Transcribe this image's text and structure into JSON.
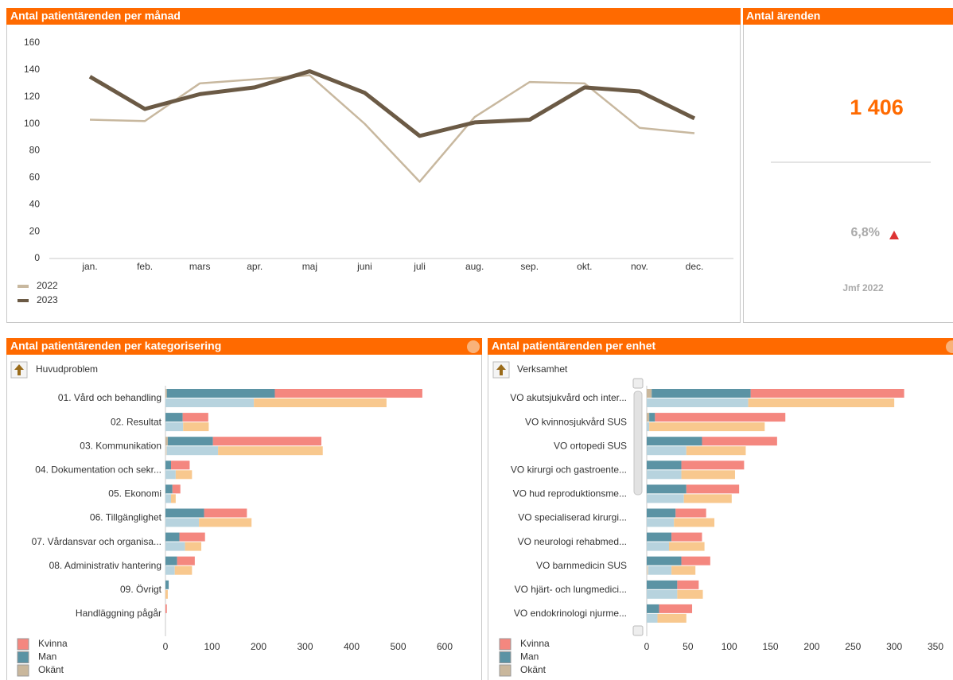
{
  "chart_data": [
    {
      "type": "line",
      "title": "Antal patientärenden per månad",
      "categories": [
        "jan.",
        "feb.",
        "mars",
        "apr.",
        "maj",
        "juni",
        "juli",
        "aug.",
        "sep.",
        "okt.",
        "nov.",
        "dec."
      ],
      "series": [
        {
          "name": "2022",
          "color": "#c8b89f",
          "values": [
            103,
            102,
            130,
            133,
            136,
            100,
            57,
            105,
            131,
            130,
            97,
            93
          ]
        },
        {
          "name": "2023",
          "color": "#6b5a45",
          "values": [
            135,
            111,
            122,
            127,
            139,
            123,
            91,
            101,
            103,
            127,
            124,
            104
          ]
        }
      ],
      "ylim": [
        0,
        160
      ],
      "yticks": [
        0,
        20,
        40,
        60,
        80,
        100,
        120,
        140,
        160
      ],
      "grid": false,
      "legend": "bottom-left"
    },
    {
      "type": "bar",
      "orientation": "horizontal",
      "stacked": true,
      "title": "Antal patientärenden per kategorisering",
      "subtitle": "Huvudproblem",
      "categories": [
        "01. Vård och behandling",
        "02. Resultat",
        "03. Kommunikation",
        "04. Dokumentation och sekr...",
        "05. Ekonomi",
        "06. Tillgänglighet",
        "07. Vårdansvar och organisa...",
        "08. Administrativ hantering",
        "09. Övrigt",
        "Handläggning pågår"
      ],
      "series": [
        {
          "name": "Kvinna",
          "color": "#f4877f",
          "compare_color": "#f8c88e",
          "values": [
            317,
            55,
            233,
            40,
            17,
            92,
            55,
            38,
            0,
            3
          ],
          "compare_values": [
            285,
            55,
            225,
            35,
            10,
            113,
            35,
            37,
            5,
            0
          ]
        },
        {
          "name": "Man",
          "color": "#5b93a4",
          "compare_color": "#b7d3de",
          "values": [
            232,
            37,
            97,
            12,
            15,
            83,
            30,
            25,
            7,
            0
          ],
          "compare_values": [
            190,
            38,
            110,
            22,
            12,
            72,
            42,
            20,
            0,
            0
          ]
        },
        {
          "name": "Okänt",
          "color": "#c9b79c",
          "compare_color": "#e0d5c4",
          "values": [
            3,
            0,
            5,
            0,
            0,
            0,
            0,
            0,
            0,
            0
          ],
          "compare_values": [
            0,
            0,
            3,
            0,
            0,
            0,
            0,
            0,
            0,
            0
          ]
        }
      ],
      "xlim": [
        0,
        600
      ],
      "xticks": [
        0,
        100,
        200,
        300,
        400,
        500,
        600
      ],
      "legend": "bottom-left"
    },
    {
      "type": "bar",
      "orientation": "horizontal",
      "stacked": true,
      "title": "Antal patientärenden per enhet",
      "subtitle": "Verksamhet",
      "categories": [
        "VO akutsjukvård och inter...",
        "VO kvinnosjukvård SUS",
        "VO ortopedi SUS",
        "VO kirurgi och gastroente...",
        "VO hud reproduktionsme...",
        "VO specialiserad kirurgi...",
        "VO neurologi rehabmed...",
        "VO barnmedicin SUS",
        "VO hjärt- och lungmedici...",
        "VO endokrinologi njurme..."
      ],
      "series": [
        {
          "name": "Kvinna",
          "color": "#f4877f",
          "compare_color": "#f8c88e",
          "values": [
            186,
            158,
            91,
            76,
            64,
            37,
            37,
            35,
            26,
            40
          ],
          "compare_values": [
            177,
            140,
            72,
            65,
            58,
            49,
            43,
            29,
            31,
            35
          ]
        },
        {
          "name": "Man",
          "color": "#5b93a4",
          "compare_color": "#b7d3de",
          "values": [
            120,
            7,
            67,
            42,
            48,
            35,
            30,
            42,
            37,
            15
          ],
          "compare_values": [
            123,
            3,
            48,
            42,
            45,
            33,
            27,
            28,
            37,
            13
          ]
        },
        {
          "name": "Okänt",
          "color": "#c9b79c",
          "compare_color": "#e0d5c4",
          "values": [
            6,
            3,
            0,
            0,
            0,
            0,
            0,
            0,
            0,
            0
          ],
          "compare_values": [
            0,
            0,
            0,
            0,
            0,
            0,
            0,
            2,
            0,
            0
          ]
        }
      ],
      "xlim": [
        0,
        350
      ],
      "xticks": [
        0,
        50,
        100,
        150,
        200,
        250,
        300,
        350
      ],
      "legend": "bottom-left"
    }
  ],
  "kpi": {
    "title": "Antal ärenden",
    "value": "1 406",
    "change": "6,8%",
    "compare_label": "Jmf 2022"
  }
}
